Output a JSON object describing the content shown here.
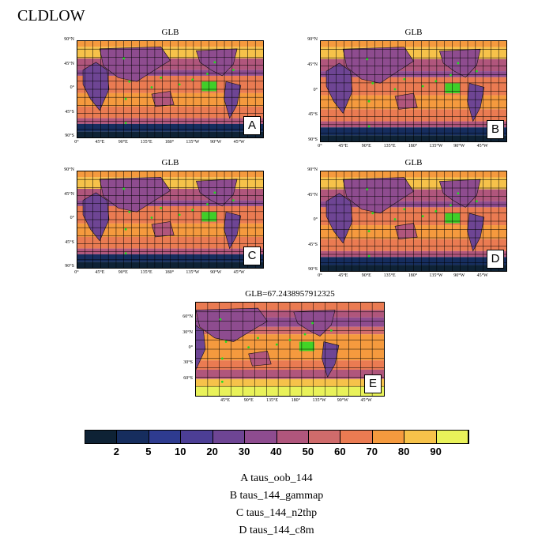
{
  "figure_title": "CLDLOW",
  "panels": [
    {
      "title": "GLB",
      "letter": "A"
    },
    {
      "title": "GLB",
      "letter": "B"
    },
    {
      "title": "GLB",
      "letter": "C"
    },
    {
      "title": "GLB",
      "letter": "D"
    },
    {
      "title": "GLB=67.2438957912325",
      "letter": "E"
    }
  ],
  "lat_labels_small": [
    "90°N",
    "45°N",
    "0°",
    "45°S",
    "90°S"
  ],
  "lat_labels_e": [
    "60°N",
    "30°N",
    "0°",
    "30°S",
    "60°S"
  ],
  "lon_labels_small": [
    "0°",
    "45°E",
    "90°E",
    "135°E",
    "180°",
    "135°W",
    "90°W",
    "45°W"
  ],
  "lon_labels_e": [
    "45°E",
    "90°E",
    "135°E",
    "180°",
    "135°W",
    "90°W",
    "45°W"
  ],
  "colorbar": {
    "colors": [
      "#0e2235",
      "#162d5e",
      "#2e3b8f",
      "#4c3e95",
      "#6e4594",
      "#8e4c8f",
      "#b0567c",
      "#d06b6b",
      "#ea7b52",
      "#f59a3e",
      "#f6c24a",
      "#e9f25a"
    ],
    "labels": [
      "2",
      "5",
      "10",
      "20",
      "30",
      "40",
      "50",
      "60",
      "70",
      "80",
      "90"
    ]
  },
  "case_legend": [
    "A  taus_oob_144",
    "B  taus_144_gammap",
    "C  taus_144_n2thp",
    "D  taus_144_c8m"
  ]
}
